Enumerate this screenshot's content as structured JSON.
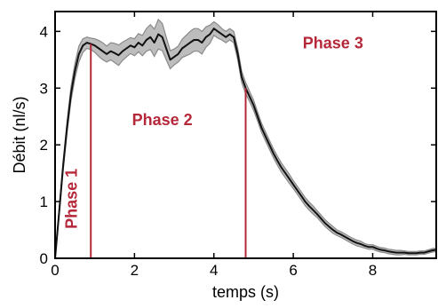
{
  "chart_data": {
    "type": "line",
    "title": "",
    "xlabel": "temps (s)",
    "ylabel": "Débit (nl/s)",
    "xlim": [
      0,
      9.6
    ],
    "ylim": [
      0,
      4.35
    ],
    "x_ticks": [
      "0",
      "2",
      "4",
      "6",
      "8"
    ],
    "y_ticks": [
      "0",
      "1",
      "2",
      "3",
      "4"
    ],
    "grid": false,
    "legend": "none",
    "colors": {
      "mean_line": "#111111",
      "band": "#bdbdbd",
      "band_edge": "#8a8a8a",
      "annotation": "#b5283a"
    },
    "series": [
      {
        "name": "",
        "x": [
          0,
          0.1,
          0.2,
          0.3,
          0.4,
          0.5,
          0.6,
          0.7,
          0.8,
          0.9,
          1.0,
          1.1,
          1.2,
          1.3,
          1.4,
          1.5,
          1.6,
          1.7,
          1.8,
          1.9,
          2.0,
          2.1,
          2.2,
          2.3,
          2.4,
          2.5,
          2.6,
          2.7,
          2.8,
          2.9,
          3.0,
          3.1,
          3.2,
          3.3,
          3.4,
          3.5,
          3.6,
          3.7,
          3.8,
          3.9,
          4.0,
          4.1,
          4.2,
          4.3,
          4.4,
          4.5,
          4.6,
          4.7,
          4.8,
          4.9,
          5.0,
          5.1,
          5.2,
          5.3,
          5.4,
          5.5,
          5.6,
          5.7,
          5.8,
          5.9,
          6.0,
          6.1,
          6.2,
          6.3,
          6.4,
          6.5,
          6.6,
          6.7,
          6.8,
          6.9,
          7.0,
          7.1,
          7.2,
          7.3,
          7.4,
          7.5,
          7.6,
          7.7,
          7.8,
          7.9,
          8.0,
          8.1,
          8.2,
          8.3,
          8.4,
          8.5,
          8.6,
          8.7,
          8.8,
          8.9,
          9.0,
          9.1,
          9.2,
          9.3,
          9.4,
          9.5,
          9.6
        ],
        "y": [
          0,
          0.8,
          1.6,
          2.3,
          2.9,
          3.3,
          3.6,
          3.75,
          3.8,
          3.78,
          3.75,
          3.7,
          3.65,
          3.6,
          3.65,
          3.62,
          3.58,
          3.65,
          3.7,
          3.75,
          3.72,
          3.8,
          3.75,
          3.85,
          3.9,
          3.8,
          3.95,
          3.9,
          3.7,
          3.5,
          3.55,
          3.6,
          3.7,
          3.75,
          3.8,
          3.85,
          3.85,
          3.8,
          3.9,
          3.95,
          4.05,
          4.0,
          3.95,
          3.9,
          3.95,
          3.9,
          3.6,
          3.2,
          3.0,
          2.85,
          2.7,
          2.5,
          2.3,
          2.15,
          2.0,
          1.85,
          1.72,
          1.6,
          1.5,
          1.4,
          1.3,
          1.2,
          1.1,
          1.0,
          0.92,
          0.85,
          0.78,
          0.7,
          0.62,
          0.56,
          0.5,
          0.45,
          0.42,
          0.38,
          0.34,
          0.3,
          0.27,
          0.25,
          0.22,
          0.2,
          0.2,
          0.17,
          0.15,
          0.14,
          0.12,
          0.11,
          0.1,
          0.1,
          0.1,
          0.09,
          0.09,
          0.09,
          0.1,
          0.1,
          0.12,
          0.14,
          0.15
        ]
      }
    ],
    "band_halfwidth": [
      0,
      0.06,
      0.08,
      0.1,
      0.12,
      0.13,
      0.14,
      0.12,
      0.1,
      0.1,
      0.12,
      0.14,
      0.15,
      0.14,
      0.15,
      0.17,
      0.18,
      0.16,
      0.15,
      0.14,
      0.15,
      0.16,
      0.18,
      0.2,
      0.22,
      0.24,
      0.26,
      0.24,
      0.2,
      0.16,
      0.14,
      0.14,
      0.16,
      0.18,
      0.2,
      0.2,
      0.2,
      0.2,
      0.18,
      0.16,
      0.12,
      0.12,
      0.1,
      0.1,
      0.1,
      0.1,
      0.1,
      0.1,
      0.1,
      0.09,
      0.09,
      0.08,
      0.08,
      0.08,
      0.08,
      0.08,
      0.08,
      0.08,
      0.08,
      0.08,
      0.07,
      0.07,
      0.07,
      0.07,
      0.07,
      0.07,
      0.06,
      0.06,
      0.06,
      0.06,
      0.06,
      0.05,
      0.05,
      0.05,
      0.05,
      0.05,
      0.05,
      0.05,
      0.04,
      0.04,
      0.04,
      0.04,
      0.04,
      0.04,
      0.04,
      0.04,
      0.04,
      0.04,
      0.03,
      0.03,
      0.03,
      0.03,
      0.03,
      0.03,
      0.03,
      0.03,
      0.03
    ],
    "phase_lines": [
      0.9,
      4.8
    ],
    "annotations": [
      {
        "text": "Phase 1",
        "x": 0.55,
        "y": 1.05,
        "orientation": "vertical"
      },
      {
        "text": "Phase 2",
        "x": 2.7,
        "y": 2.35,
        "orientation": "horizontal"
      },
      {
        "text": "Phase 3",
        "x": 7.0,
        "y": 3.7,
        "orientation": "horizontal"
      }
    ]
  }
}
